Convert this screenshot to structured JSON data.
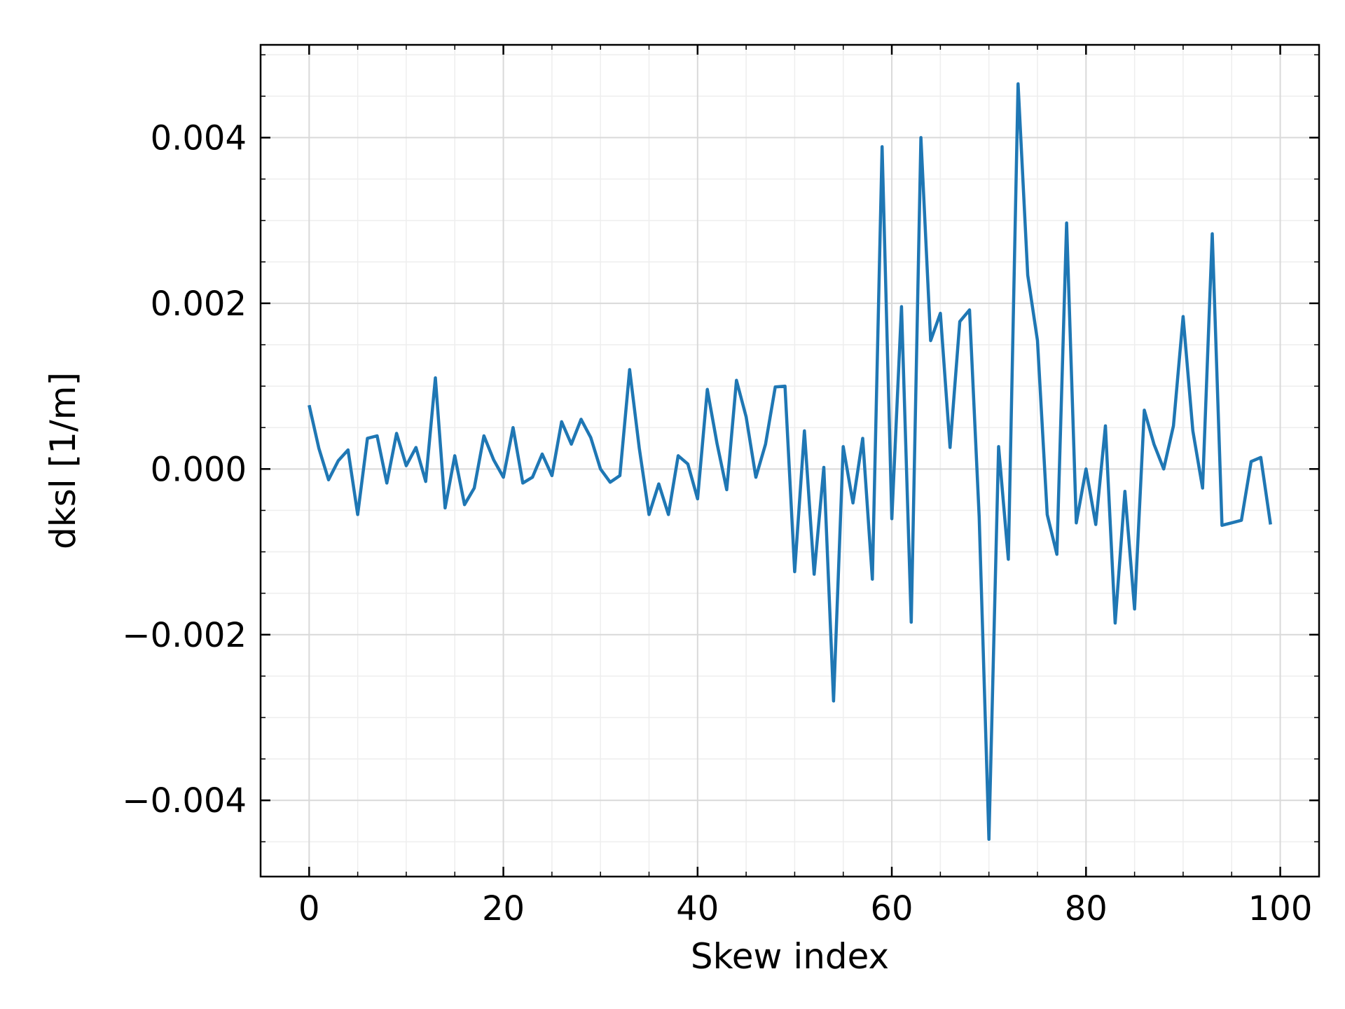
{
  "chart_data": {
    "type": "line",
    "title": "",
    "xlabel": "Skew index",
    "ylabel": "dksl [1/m]",
    "xlim": [
      -5,
      104
    ],
    "ylim": [
      -0.00492,
      0.00512
    ],
    "xticks": [
      0,
      20,
      40,
      60,
      80,
      100
    ],
    "xtick_labels": [
      "0",
      "20",
      "40",
      "60",
      "80",
      "100"
    ],
    "yticks": [
      -0.004,
      -0.002,
      0.0,
      0.002,
      0.004
    ],
    "ytick_labels": [
      "−0.004",
      "−0.002",
      "0.000",
      "0.002",
      "0.004"
    ],
    "grid": true,
    "legend": "none",
    "colors": {
      "line": "#1f77b4",
      "grid": "#d9d9d9",
      "frame": "#000000",
      "background": "#ffffff"
    },
    "series": [
      {
        "x": [
          0,
          1,
          2,
          3,
          4,
          5,
          6,
          7,
          8,
          9,
          10,
          11,
          12,
          13,
          14,
          15,
          16,
          17,
          18,
          19,
          20,
          21,
          22,
          23,
          24,
          25,
          26,
          27,
          28,
          29,
          30,
          31,
          32,
          33,
          34,
          35,
          36,
          37,
          38,
          39,
          40,
          41,
          42,
          43,
          44,
          45,
          46,
          47,
          48,
          49,
          50,
          51,
          52,
          53,
          54,
          55,
          56,
          57,
          58,
          59,
          60,
          61,
          62,
          63,
          64,
          65,
          66,
          67,
          68,
          69,
          70,
          71,
          72,
          73,
          74,
          75,
          76,
          77,
          78,
          79,
          80,
          81,
          82,
          83,
          84,
          85,
          86,
          87,
          88,
          89,
          90,
          91,
          92,
          93,
          94,
          95,
          96,
          97,
          98,
          99
        ],
        "values": [
          0.00077,
          0.00025,
          -0.00013,
          0.0001,
          0.00023,
          -0.00055,
          0.00037,
          0.0004,
          -0.00017,
          0.00043,
          4e-05,
          0.00026,
          -0.00015,
          0.0011,
          -0.00047,
          0.00016,
          -0.00043,
          -0.00023,
          0.0004,
          0.00011,
          -0.0001,
          0.0005,
          -0.00017,
          -0.0001,
          0.00018,
          -8e-05,
          0.00057,
          0.0003,
          0.0006,
          0.00038,
          0.0,
          -0.00016,
          -8e-05,
          0.0012,
          0.00025,
          -0.00055,
          -0.00018,
          -0.00055,
          0.00016,
          6e-05,
          -0.00036,
          0.00096,
          0.00031,
          -0.00025,
          0.00107,
          0.00063,
          -0.0001,
          0.0003,
          0.00099,
          0.001,
          -0.00124,
          0.00046,
          -0.00127,
          2e-05,
          -0.0028,
          0.00027,
          -0.00041,
          0.00037,
          -0.00133,
          0.00389,
          -0.0006,
          0.00196,
          -0.00185,
          0.004,
          0.00155,
          0.00188,
          0.00026,
          0.00178,
          0.00192,
          -0.00058,
          -0.00447,
          0.00027,
          -0.00109,
          0.00465,
          0.00234,
          0.00155,
          -0.00055,
          -0.00103,
          0.00297,
          -0.00065,
          0.0,
          -0.00067,
          0.00052,
          -0.00186,
          -0.00027,
          -0.00169,
          0.00071,
          0.0003,
          0.0,
          0.00052,
          0.00184,
          0.00046,
          -0.00023,
          0.00284,
          -0.00068,
          -0.00065,
          -0.00062,
          9e-05,
          0.00014,
          -0.00067
        ]
      }
    ]
  }
}
